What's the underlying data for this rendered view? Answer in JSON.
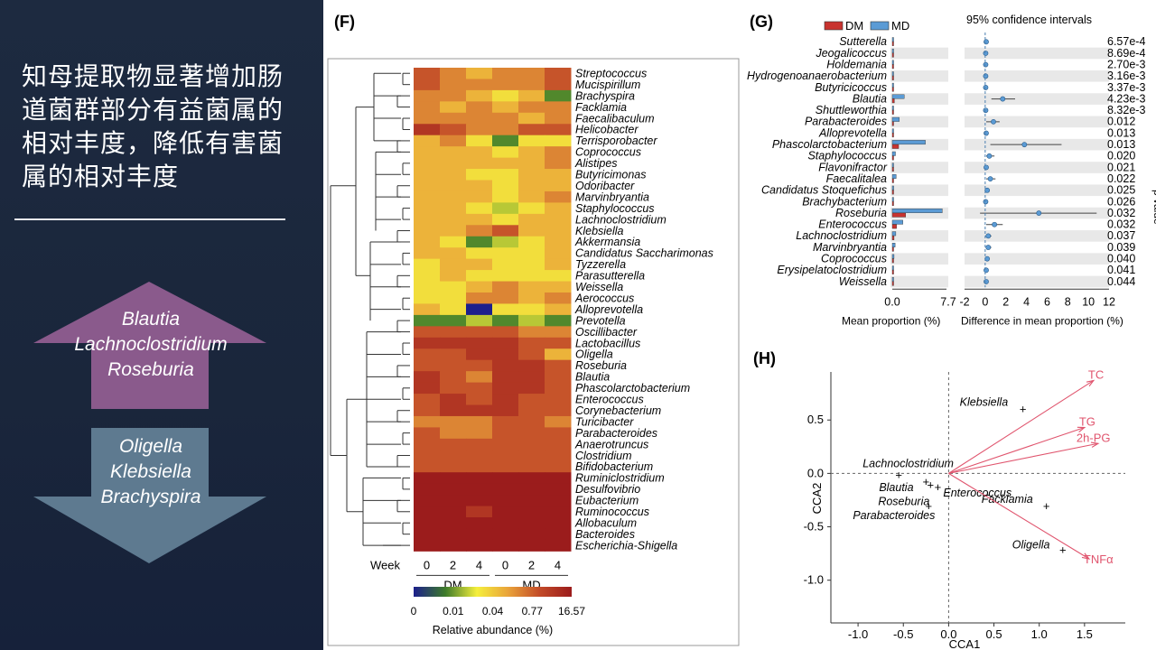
{
  "slide": {
    "headline": "知母提取物显著增加肠道菌群部分有益菌属的相对丰度，降低有害菌属的相对丰度",
    "up_arrow_genera": [
      "Blautia",
      "Lachnoclostridium",
      "Roseburia"
    ],
    "down_arrow_genera": [
      "Oligella",
      "Klebsiella",
      "Brachyspira"
    ],
    "colors": {
      "panel_bg": "#1b2740",
      "up_arrow": "#8a5a8c",
      "down_arrow": "#5e7a90"
    }
  },
  "panels": {
    "F": "(F)",
    "G": "(G)",
    "H": "(H)"
  },
  "chart_data": [
    {
      "type": "heatmap",
      "panel": "(F)",
      "rows": [
        "Streptococcus",
        "Mucispirillum",
        "Brachyspira",
        "Facklamia",
        "Faecalibaculum",
        "Helicobacter",
        "Terrisporobacter",
        "Coprococcus",
        "Alistipes",
        "Butyricimonas",
        "Odoribacter",
        "Marvinbryantia",
        "Staphylococcus",
        "Lachnoclostridium",
        "Klebsiella",
        "Akkermansia",
        "Candidatus Saccharimonas",
        "Tyzzerella",
        "Parasutterella",
        "Weissella",
        "Aerococcus",
        "Alloprevotella",
        "Prevotella",
        "Oscillibacter",
        "Lactobacillus",
        "Oligella",
        "Roseburia",
        "Blautia",
        "Phascolarctobacterium",
        "Enterococcus",
        "Corynebacterium",
        "Turicibacter",
        "Parabacteroides",
        "Anaerotruncus",
        "Clostridium",
        "Bifidobacterium",
        "Ruminiclostridium",
        "Desulfovibrio",
        "Eubacterium",
        "Ruminococcus",
        "Allobaculum",
        "Bacteroides",
        "Escherichia-Shigella"
      ],
      "columns_label": "Week",
      "columns": [
        "0",
        "2",
        "4",
        "0",
        "2",
        "4"
      ],
      "groups": [
        "DM",
        "MD"
      ],
      "values": [
        [
          7,
          6,
          5,
          6,
          6,
          7
        ],
        [
          7,
          6,
          6,
          6,
          6,
          7
        ],
        [
          6,
          6,
          5,
          4,
          5,
          2
        ],
        [
          6,
          5,
          6,
          5,
          6,
          6
        ],
        [
          6,
          6,
          6,
          6,
          5,
          6
        ],
        [
          8,
          7,
          6,
          6,
          7,
          7
        ],
        [
          5,
          6,
          4,
          2,
          4,
          4
        ],
        [
          5,
          5,
          5,
          4,
          5,
          6
        ],
        [
          5,
          5,
          5,
          5,
          5,
          6
        ],
        [
          5,
          5,
          4,
          4,
          5,
          5
        ],
        [
          5,
          5,
          5,
          4,
          5,
          5
        ],
        [
          5,
          5,
          5,
          4,
          5,
          6
        ],
        [
          5,
          5,
          4,
          3,
          4,
          5
        ],
        [
          5,
          5,
          5,
          4,
          5,
          5
        ],
        [
          5,
          5,
          6,
          7,
          5,
          5
        ],
        [
          5,
          4,
          2,
          3,
          4,
          5
        ],
        [
          5,
          5,
          4,
          4,
          4,
          5
        ],
        [
          4,
          5,
          5,
          4,
          4,
          5
        ],
        [
          4,
          5,
          4,
          4,
          4,
          4
        ],
        [
          4,
          4,
          5,
          6,
          5,
          5
        ],
        [
          4,
          4,
          6,
          6,
          5,
          6
        ],
        [
          5,
          4,
          0,
          4,
          4,
          5
        ],
        [
          2,
          2,
          3,
          2,
          3,
          2
        ],
        [
          7,
          7,
          7,
          7,
          6,
          6
        ],
        [
          8,
          8,
          8,
          8,
          7,
          7
        ],
        [
          7,
          7,
          8,
          8,
          7,
          5
        ],
        [
          7,
          7,
          7,
          8,
          8,
          7
        ],
        [
          8,
          7,
          6,
          8,
          8,
          7
        ],
        [
          8,
          7,
          7,
          8,
          8,
          7
        ],
        [
          7,
          8,
          7,
          8,
          7,
          7
        ],
        [
          7,
          8,
          8,
          8,
          7,
          7
        ],
        [
          6,
          6,
          6,
          7,
          7,
          6
        ],
        [
          7,
          6,
          6,
          7,
          7,
          7
        ],
        [
          7,
          7,
          7,
          7,
          7,
          7
        ],
        [
          7,
          7,
          7,
          7,
          7,
          7
        ],
        [
          7,
          7,
          7,
          7,
          7,
          7
        ],
        [
          9,
          9,
          9,
          9,
          9,
          9
        ],
        [
          9,
          9,
          9,
          9,
          9,
          9
        ],
        [
          9,
          9,
          9,
          9,
          9,
          9
        ],
        [
          9,
          9,
          8,
          9,
          9,
          9
        ],
        [
          9,
          9,
          9,
          9,
          9,
          9
        ],
        [
          9,
          9,
          9,
          9,
          9,
          9
        ],
        [
          9,
          9,
          9,
          9,
          9,
          9
        ]
      ],
      "scale_ticks": [
        "0",
        "0.01",
        "0.04",
        "0.77",
        "16.57"
      ],
      "scale_label": "Relative abundance (%)",
      "scale_colors": [
        "#1c1f8c",
        "#3d7b2a",
        "#f5ef3c",
        "#e9a23a",
        "#c24a28",
        "#9b1c1c"
      ]
    },
    {
      "type": "bar",
      "panel": "(G)",
      "legend": [
        "DM",
        "MD"
      ],
      "colors": {
        "DM": "#c8332f",
        "MD": "#5b9bd5"
      },
      "ci_title": "95% confidence intervals",
      "taxa": [
        "Sutterella",
        "Jeogalicoccus",
        "Holdemania",
        "Hydrogenoanaerobacterium",
        "Butyricicoccus",
        "Blautia",
        "Shuttleworthia",
        "Parabacteroides",
        "Alloprevotella",
        "Phascolarctobacterium",
        "Staphylococcus",
        "Flavonifractor",
        "Faecalitalea",
        "Candidatus Stoquefichus",
        "Brachybacterium",
        "Roseburia",
        "Enterococcus",
        "Lachnoclostridium",
        "Marvinbryantia",
        "Coprococcus",
        "Erysipelatoclostridium",
        "Weissella"
      ],
      "mean_DM": [
        0.02,
        0.01,
        0.01,
        0.01,
        0.01,
        0.3,
        0.01,
        0.12,
        0.02,
        0.9,
        0.05,
        0.02,
        0.08,
        0.03,
        0.01,
        1.9,
        0.6,
        0.25,
        0.15,
        0.06,
        0.02,
        0.02
      ],
      "mean_MD": [
        0.1,
        0.05,
        0.05,
        0.05,
        0.05,
        1.7,
        0.05,
        1.0,
        0.1,
        4.7,
        0.45,
        0.1,
        0.55,
        0.2,
        0.05,
        7.1,
        1.5,
        0.5,
        0.4,
        0.25,
        0.1,
        0.1
      ],
      "diff": [
        0.1,
        0.05,
        0.05,
        0.05,
        0.05,
        1.7,
        0.05,
        0.8,
        0.1,
        3.8,
        0.4,
        0.1,
        0.5,
        0.2,
        0.05,
        5.2,
        0.9,
        0.3,
        0.3,
        0.2,
        0.1,
        0.1
      ],
      "ci_low": [
        0.05,
        0.02,
        0.02,
        0.02,
        0.02,
        0.6,
        0.02,
        0.1,
        0.05,
        0.5,
        0.1,
        0.05,
        0.1,
        0.05,
        0.02,
        -0.5,
        0.1,
        0.05,
        0.05,
        0.05,
        0.05,
        0.05
      ],
      "ci_high": [
        0.2,
        0.1,
        0.1,
        0.1,
        0.1,
        2.9,
        0.1,
        1.4,
        0.2,
        7.4,
        0.9,
        0.2,
        1.0,
        0.4,
        0.1,
        10.8,
        1.7,
        0.6,
        0.6,
        0.4,
        0.2,
        0.2
      ],
      "p_values": [
        "6.57e-4",
        "8.69e-4",
        "2.70e-3",
        "3.16e-3",
        "3.37e-3",
        "4.23e-3",
        "8.32e-3",
        "0.012",
        "0.013",
        "0.013",
        "0.020",
        "0.021",
        "0.022",
        "0.025",
        "0.026",
        "0.032",
        "0.032",
        "0.037",
        "0.039",
        "0.040",
        "0.041",
        "0.044"
      ],
      "x1_ticks": [
        "0.0",
        "7.7"
      ],
      "x1_label": "Mean proportion (%)",
      "x2_ticks": [
        "-2",
        "0",
        "2",
        "4",
        "6",
        "8",
        "10",
        "12"
      ],
      "x2_label": "Difference in mean proportion (%)",
      "side_label": "p value"
    },
    {
      "type": "scatter",
      "panel": "(H)",
      "xlabel": "CCA1",
      "ylabel": "CCA2",
      "xlim": [
        -1.3,
        1.95
      ],
      "ylim": [
        -1.4,
        0.95
      ],
      "x_ticks": [
        "-1.0",
        "-0.5",
        "0.0",
        "0.5",
        "1.0",
        "1.5"
      ],
      "y_ticks": [
        "0.5",
        "0.0",
        "-0.5",
        "-1.0"
      ],
      "points": [
        {
          "label": "Klebsiella",
          "x": 0.82,
          "y": 0.6
        },
        {
          "label": "Lachnoclostridium",
          "x": -0.55,
          "y": -0.02
        },
        {
          "label": "Blautia",
          "x": -0.25,
          "y": -0.08
        },
        {
          "label": "Roseburia",
          "x": -0.2,
          "y": -0.11
        },
        {
          "label": "Enterococcus",
          "x": -0.12,
          "y": -0.13
        },
        {
          "label": "Parabacteroides",
          "x": -0.22,
          "y": -0.31
        },
        {
          "label": "Facklamia",
          "x": 1.08,
          "y": -0.31
        },
        {
          "label": "Oligella",
          "x": 1.26,
          "y": -0.72
        }
      ],
      "vectors": [
        {
          "label": "TC",
          "x": 1.6,
          "y": 0.87
        },
        {
          "label": "TG",
          "x": 1.5,
          "y": 0.43
        },
        {
          "label": "2h-PG",
          "x": 1.65,
          "y": 0.28
        },
        {
          "label": "TNFα",
          "x": 1.55,
          "y": -0.8
        }
      ],
      "vector_color": "#e0556e"
    }
  ]
}
